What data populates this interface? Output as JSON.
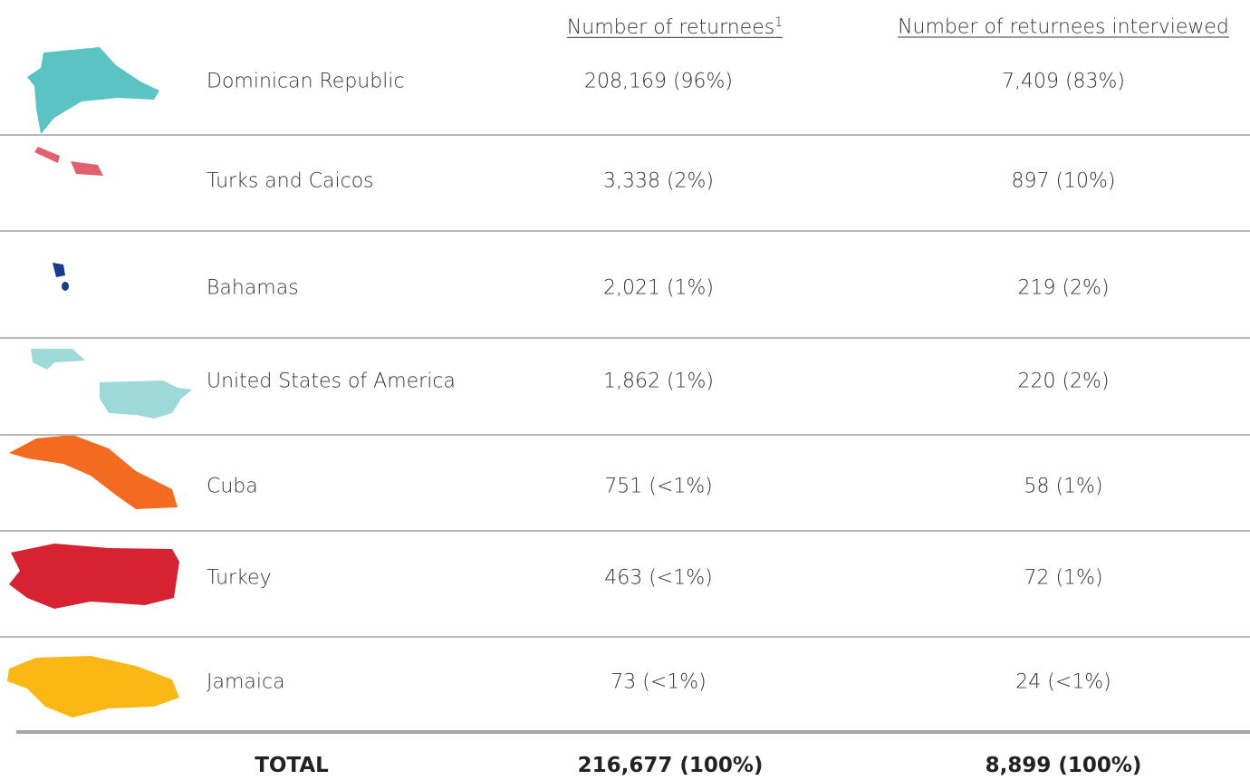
{
  "header": {
    "returnees": "Number of returnees",
    "returnees_note": "1",
    "interviewed": "Number of returnees interviewed"
  },
  "table": {
    "rows": [
      [
        "Dominican Republic",
        "208,169 (96%)",
        "7,409 (83%)"
      ],
      [
        "Turks and Caicos",
        "3,338 (2%)",
        "897 (10%)"
      ],
      [
        "Bahamas",
        "2,021 (1%)",
        "219 (2%)"
      ],
      [
        "United States of America",
        "1,862 (1%)",
        "220 (2%)"
      ],
      [
        "Cuba",
        "751 (<1%)",
        "58 (1%)"
      ],
      [
        "Turkey",
        "463 (<1%)",
        "72 (1%)"
      ],
      [
        "Jamaica",
        "73 (<1%)",
        "24 (<1%)"
      ]
    ],
    "total": [
      "TOTAL",
      "216,677 (100%)",
      "8,899 (100%)"
    ]
  }
}
